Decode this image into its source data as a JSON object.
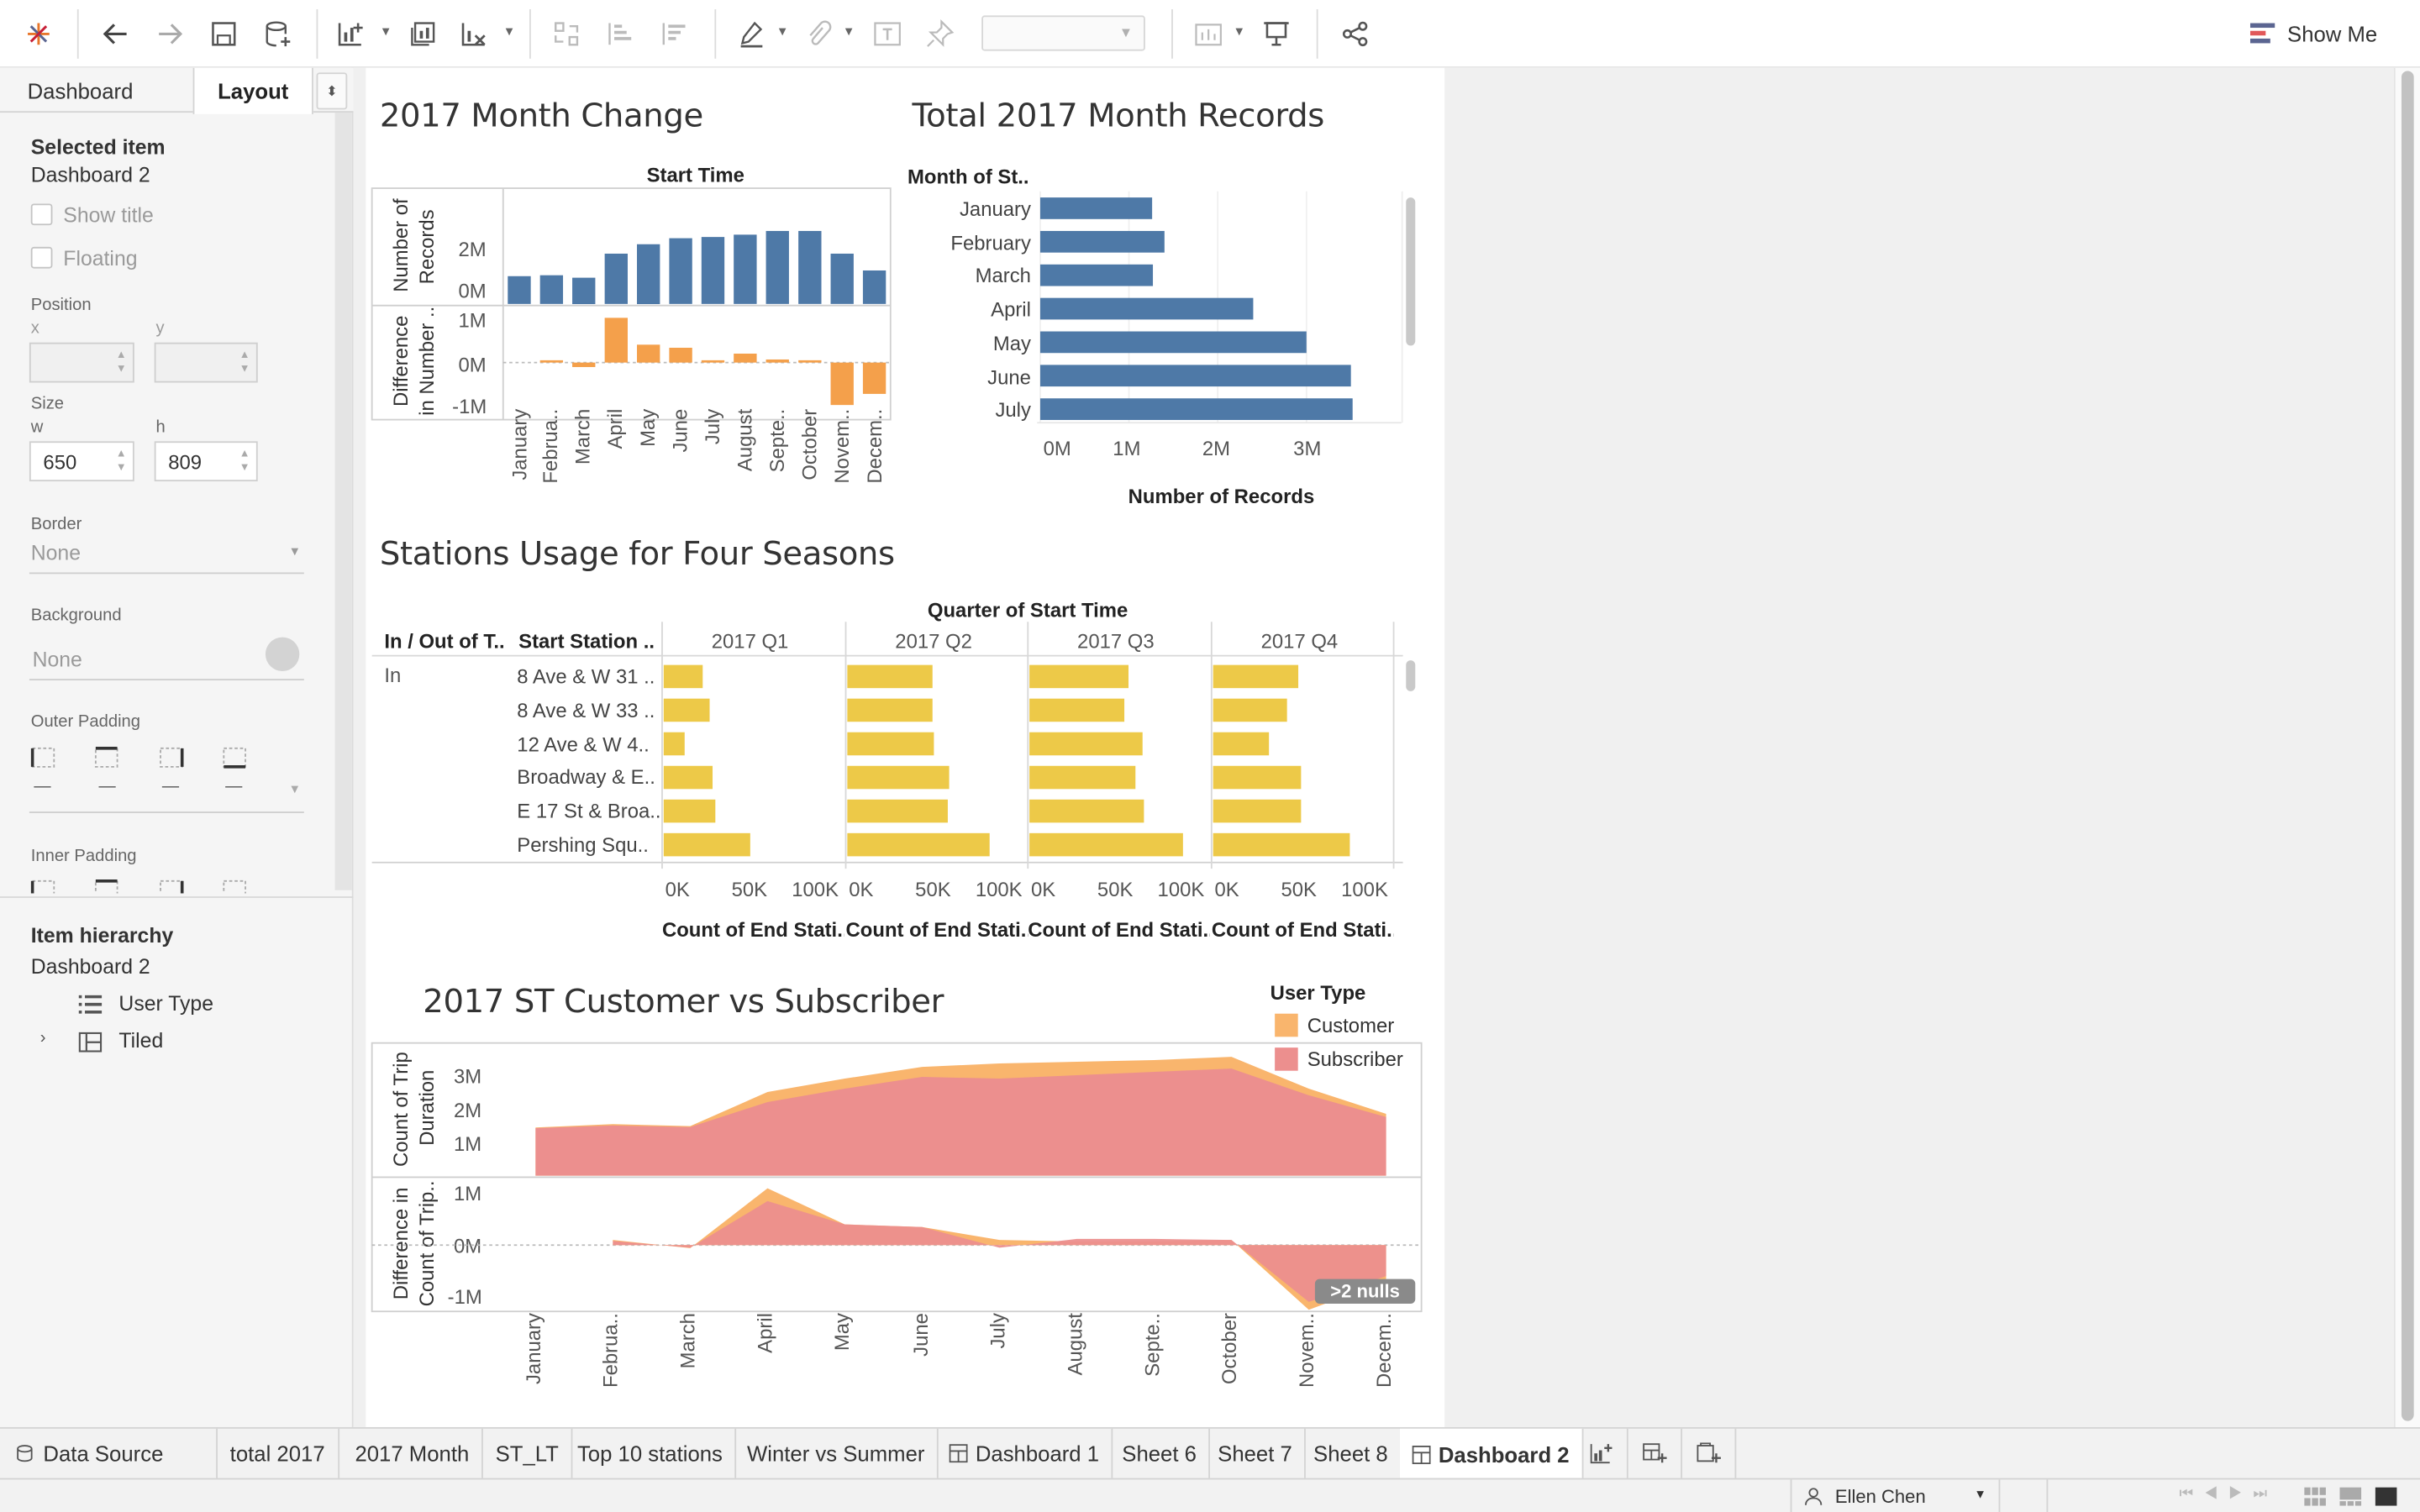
{
  "toolbar": {
    "show_me_label": "Show Me",
    "icons": [
      "tableau-logo-icon",
      "undo-icon",
      "redo-icon",
      "save-icon",
      "new-data-source-icon",
      "new-worksheet-icon",
      "duplicate-sheet-icon",
      "clear-sheet-icon",
      "swap-icon",
      "sort-ascending-icon",
      "sort-descending-icon",
      "highlight-icon",
      "group-icon",
      "label-icon",
      "pin-icon",
      "fit-dropdown",
      "fix-axes-icon",
      "presentation-icon",
      "share-icon"
    ]
  },
  "left_panel": {
    "tabs": [
      "Dashboard",
      "Layout"
    ],
    "selected_item_label": "Selected item",
    "selected_item_value": "Dashboard 2",
    "show_title_label": "Show title",
    "floating_label": "Floating",
    "position_label": "Position",
    "x_label": "x",
    "y_label": "y",
    "size_label": "Size",
    "w_label": "w",
    "h_label": "h",
    "w_value": "650",
    "h_value": "809",
    "border_label": "Border",
    "border_value": "None",
    "background_label": "Background",
    "background_value": "None",
    "outer_padding_label": "Outer Padding",
    "outer_padding_values": [
      "—",
      "—",
      "—",
      "—"
    ],
    "inner_padding_label": "Inner Padding",
    "item_hierarchy_label": "Item hierarchy",
    "hierarchy_root": "Dashboard 2",
    "hierarchy_items": [
      "User Type",
      "Tiled"
    ]
  },
  "dashboard": {
    "month_change": {
      "title": "2017 Month Change",
      "column_header": "Start Time",
      "y_label_top": "Number of Records",
      "y_label_top_lines": [
        "Number of",
        "Records"
      ],
      "y_label_bottom_lines": [
        "Difference",
        "in Number .."
      ],
      "y_ticks_top": [
        "2M",
        "0M"
      ],
      "y_ticks_bottom": [
        "1M",
        "0M",
        "-1M"
      ],
      "months": [
        "January",
        "Februa..",
        "March",
        "April",
        "May",
        "June",
        "July",
        "August",
        "Septe..",
        "October",
        "Novem..",
        "Decem.."
      ]
    },
    "month_records": {
      "title": "Total 2017 Month Records",
      "row_header": "Month of St..",
      "months": [
        "January",
        "February",
        "March",
        "April",
        "May",
        "June",
        "July"
      ],
      "x_ticks": [
        "0M",
        "1M",
        "2M",
        "3M"
      ],
      "x_label": "Number of Records"
    },
    "stations": {
      "title": "Stations Usage for Four Seasons",
      "column_header": "Quarter of Start Time",
      "row_header_1": "In / Out of T..",
      "row_header_2": "Start Station ..",
      "quarters": [
        "2017 Q1",
        "2017 Q2",
        "2017 Q3",
        "2017 Q4"
      ],
      "group": "In",
      "stations": [
        "8 Ave & W 31 ..",
        "8 Ave & W 33 ..",
        "12 Ave & W 4..",
        "Broadway & E..",
        "E 17 St & Broa..",
        "Pershing Squ.."
      ],
      "x_ticks": [
        "0K",
        "50K",
        "100K"
      ],
      "x_label": "Count of End Stati.."
    },
    "customer_subscriber": {
      "title": "2017 ST Customer vs Subscriber",
      "legend_title": "User Type",
      "legend_items": [
        "Customer",
        "Subscriber"
      ],
      "y_label_top_lines": [
        "Count of Trip",
        "Duration"
      ],
      "y_label_bottom_lines": [
        "Difference in",
        "Count of Trip.."
      ],
      "y_ticks_top": [
        "3M",
        "2M",
        "1M"
      ],
      "y_ticks_bottom": [
        "1M",
        "0M",
        "-1M"
      ],
      "months": [
        "January",
        "Februa..",
        "March",
        "April",
        "May",
        "June",
        "July",
        "August",
        "Septe..",
        "October",
        "Novem..",
        "Decem.."
      ],
      "nulls_badge": ">2 nulls"
    }
  },
  "colors": {
    "blue": "#4e79a7",
    "orange": "#f4a04b",
    "yellow": "#edc948",
    "customer": "#f9b56d",
    "subscriber": "#ec8f8e"
  },
  "bottom_tabs": [
    "Data Source",
    "total 2017",
    "2017 Month",
    "ST_LT",
    "Top 10 stations",
    "Winter vs Summer",
    "Dashboard 1",
    "Sheet 6",
    "Sheet 7",
    "Sheet 8",
    "Dashboard 2"
  ],
  "active_tab": "Dashboard 2",
  "status": {
    "user": "Ellen Chen"
  },
  "chart_data": [
    {
      "type": "bar",
      "title": "2017 Month Change",
      "xlabel": "Start Time",
      "ylabel": "Number of Records",
      "categories": [
        "January",
        "February",
        "March",
        "April",
        "May",
        "June",
        "July",
        "August",
        "September",
        "October",
        "November",
        "December"
      ],
      "series": [
        {
          "name": "Number of Records",
          "values": [
            1.16,
            1.2,
            1.1,
            2.1,
            2.5,
            2.75,
            2.8,
            2.9,
            3.05,
            3.05,
            2.1,
            1.4
          ]
        },
        {
          "name": "Difference in Number of Records",
          "values": [
            null,
            0.04,
            -0.1,
            1.0,
            0.4,
            0.33,
            0.05,
            0.2,
            0.07,
            0.0,
            -0.95,
            -0.7
          ]
        }
      ],
      "units": "millions"
    },
    {
      "type": "bar",
      "orientation": "horizontal",
      "title": "Total 2017 Month Records",
      "xlabel": "Number of Records",
      "categories": [
        "January",
        "February",
        "March",
        "April",
        "May",
        "June",
        "July"
      ],
      "values": [
        1.26,
        1.4,
        1.27,
        2.4,
        3.0,
        3.5,
        3.52
      ],
      "xlim": [
        0,
        3.8
      ],
      "units": "millions"
    },
    {
      "type": "bar",
      "orientation": "horizontal",
      "title": "Stations Usage for Four Seasons",
      "xlabel": "Count of End Stati..",
      "categories": [
        "8 Ave & W 31 ..",
        "8 Ave & W 33 ..",
        "12 Ave & W 4..",
        "Broadway & E..",
        "E 17 St & Broa..",
        "Pershing Squ.."
      ],
      "series": [
        {
          "name": "2017 Q1",
          "values": [
            28000,
            33000,
            15000,
            35000,
            37000,
            62000
          ]
        },
        {
          "name": "2017 Q2",
          "values": [
            61000,
            61000,
            62000,
            73000,
            72000,
            102000
          ]
        },
        {
          "name": "2017 Q3",
          "values": [
            71000,
            68000,
            81000,
            76000,
            82000,
            110000
          ]
        },
        {
          "name": "2017 Q4",
          "values": [
            61000,
            53000,
            40000,
            63000,
            63000,
            98000
          ]
        }
      ],
      "xlim": [
        0,
        115000
      ]
    },
    {
      "type": "area",
      "title": "2017 ST Customer vs Subscriber",
      "categories": [
        "January",
        "February",
        "March",
        "April",
        "May",
        "June",
        "July",
        "August",
        "September",
        "October",
        "November",
        "December"
      ],
      "series": [
        {
          "name": "Subscriber",
          "values": [
            1.42,
            1.5,
            1.45,
            2.2,
            2.6,
            2.95,
            2.9,
            3.0,
            3.1,
            3.2,
            2.4,
            1.75
          ]
        },
        {
          "name": "Customer",
          "values": [
            0.02,
            0.04,
            0.03,
            0.3,
            0.3,
            0.3,
            0.45,
            0.4,
            0.35,
            0.35,
            0.2,
            0.1
          ]
        }
      ],
      "difference_series": [
        {
          "name": "Subscriber",
          "values": [
            null,
            0.08,
            -0.05,
            0.85,
            0.4,
            0.35,
            -0.05,
            0.12,
            0.12,
            0.1,
            -1.1,
            -0.6
          ]
        },
        {
          "name": "Customer",
          "values": [
            null,
            0.02,
            -0.01,
            0.25,
            0.0,
            0.0,
            0.15,
            -0.05,
            -0.05,
            0.0,
            -0.15,
            -0.1
          ]
        }
      ],
      "ylim": [
        0,
        3.6
      ],
      "units": "millions"
    }
  ]
}
